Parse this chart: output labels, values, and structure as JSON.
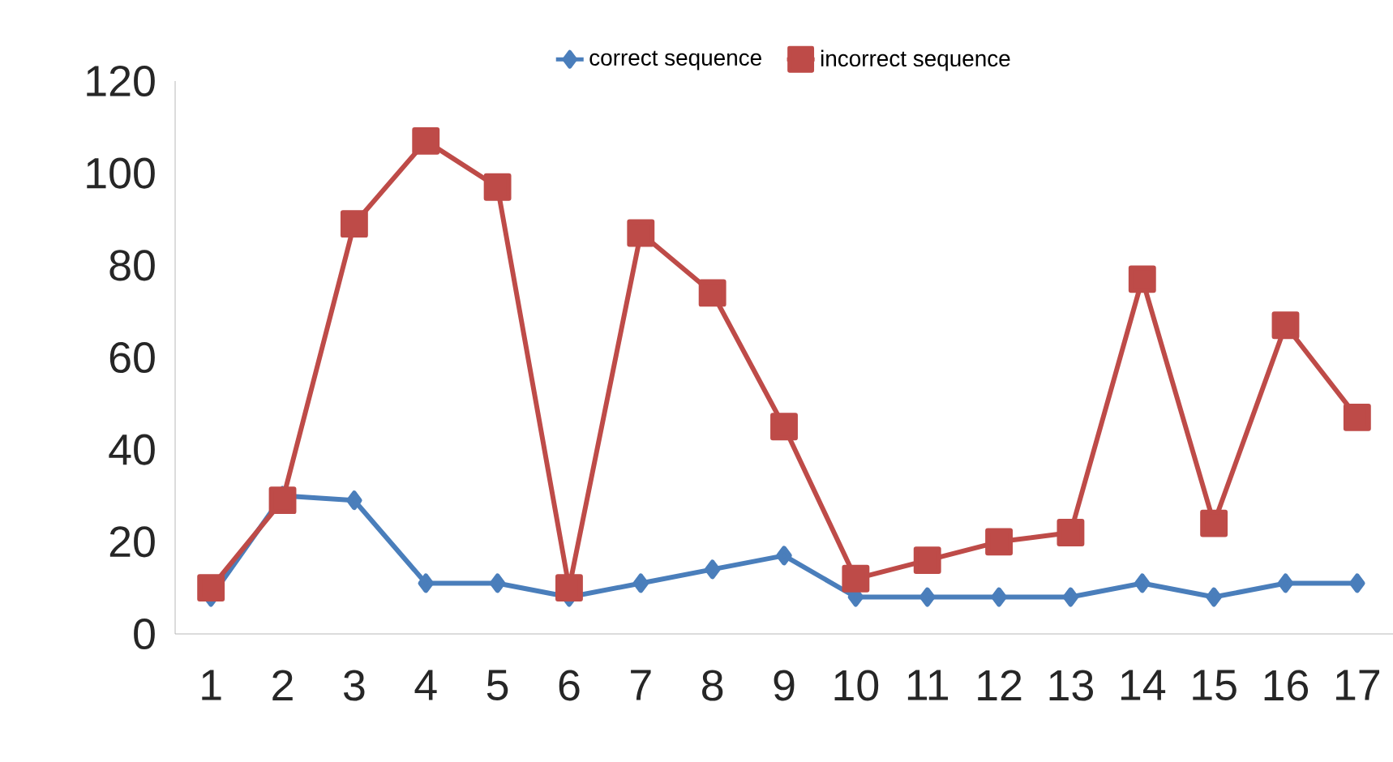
{
  "chart_data": {
    "type": "line",
    "categories": [
      "1",
      "2",
      "3",
      "4",
      "5",
      "6",
      "7",
      "8",
      "9",
      "10",
      "11",
      "12",
      "13",
      "14",
      "15",
      "16",
      "17"
    ],
    "series": [
      {
        "name": "correct sequence",
        "color": "#4a7ebb",
        "marker": "diamond",
        "values": [
          8,
          30,
          29,
          11,
          11,
          8,
          11,
          14,
          17,
          8,
          8,
          8,
          8,
          11,
          8,
          11,
          11
        ]
      },
      {
        "name": "incorrect sequence",
        "color": "#be4b48",
        "marker": "square",
        "values": [
          10,
          29,
          89,
          107,
          97,
          10,
          87,
          74,
          45,
          12,
          16,
          20,
          22,
          77,
          24,
          67,
          47
        ]
      }
    ],
    "ylim": [
      0,
      120
    ],
    "yticks": [
      0,
      20,
      40,
      60,
      80,
      100,
      120
    ],
    "grid": false,
    "legend": "top",
    "line_style": "solid"
  }
}
